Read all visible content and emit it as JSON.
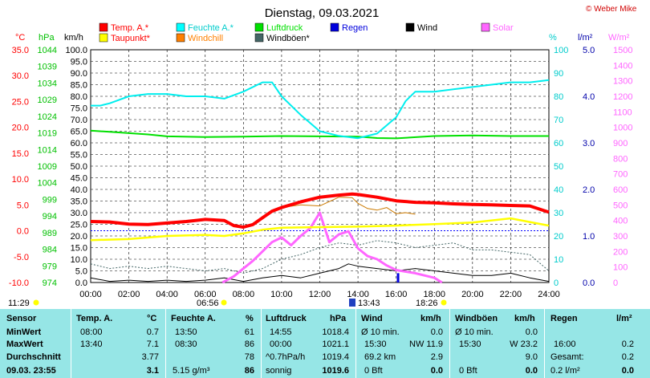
{
  "header": {
    "title": "Dienstag, 09.03.2021",
    "copyright": "© Weber Mike"
  },
  "legend": [
    {
      "label": "Temp. A.*",
      "color": "#ff0000"
    },
    {
      "label": "Feuchte A.*",
      "color": "#00ffff"
    },
    {
      "label": "Luftdruck",
      "color": "#00e000"
    },
    {
      "label": "Regen",
      "color": "#0000dd"
    },
    {
      "label": "Wind",
      "color": "#000000"
    },
    {
      "label": "Solar",
      "color": "#ff66ff"
    },
    {
      "label": "Taupunkt*",
      "color": "#ffff00"
    },
    {
      "label": "Windchill",
      "color": "#ff8000"
    },
    {
      "label": "Windböen*",
      "color": "#446666"
    }
  ],
  "chart_data": {
    "type": "line",
    "x_range": [
      "00:00",
      "24:00"
    ],
    "x_ticks": [
      "00:00",
      "02:00",
      "04:00",
      "06:00",
      "08:00",
      "10:00",
      "12:00",
      "14:00",
      "16:00",
      "18:00",
      "20:00",
      "22:00",
      "24:00"
    ],
    "grid": true,
    "axes": {
      "temp": {
        "unit": "°C",
        "range": [
          -10,
          35
        ],
        "ticks": [
          "35.0",
          "30.0",
          "25.0",
          "20.0",
          "15.0",
          "10.0",
          "5.0",
          "0.0",
          "-5.0",
          "-10.0"
        ],
        "color": "#ff0000"
      },
      "pressure": {
        "unit": "hPa",
        "range": [
          974,
          1046
        ],
        "ticks": [
          "1044",
          "1039",
          "1034",
          "1029",
          "1024",
          "1019",
          "1014",
          "1009",
          "1004",
          "999",
          "994",
          "989",
          "984",
          "979",
          "974"
        ],
        "color": "#00c000"
      },
      "wind": {
        "unit": "km/h",
        "range": [
          0,
          100
        ],
        "ticks": [
          "100.0",
          "95.0",
          "90.0",
          "85.0",
          "80.0",
          "75.0",
          "70.0",
          "65.0",
          "60.0",
          "55.0",
          "50.0",
          "45.0",
          "40.0",
          "35.0",
          "30.0",
          "25.0",
          "20.0",
          "15.0",
          "10.0",
          "5.0",
          "0.0"
        ],
        "color": "#000000"
      },
      "humidity": {
        "unit": "%",
        "range": [
          0,
          100
        ],
        "ticks": [
          "100",
          "90",
          "80",
          "70",
          "60",
          "50",
          "40",
          "30",
          "20",
          "10",
          "0"
        ],
        "color": "#00cccc"
      },
      "rain": {
        "unit": "l/m²",
        "range": [
          0,
          5
        ],
        "ticks": [
          "5.0",
          "4.0",
          "3.0",
          "2.0",
          "1.0",
          "0.0"
        ],
        "color": "#0000aa"
      },
      "solar": {
        "unit": "W/m²",
        "range": [
          0,
          1500
        ],
        "ticks": [
          "1500",
          "1400",
          "1300",
          "1200",
          "1100",
          "1000",
          "900",
          "800",
          "700",
          "600",
          "500",
          "400",
          "300",
          "200",
          "100",
          "0"
        ],
        "color": "#ff66ff"
      }
    },
    "series": [
      {
        "name": "Temp. A.*",
        "axis": "temp",
        "x": [
          0,
          1,
          2,
          3,
          4,
          5,
          6,
          7,
          7.5,
          8,
          8.5,
          9,
          9.5,
          10,
          11,
          12,
          13,
          13.7,
          14,
          15,
          16,
          17,
          18,
          19,
          20,
          21,
          22,
          23,
          24
        ],
        "y": [
          1.8,
          1.7,
          1.3,
          1.2,
          1.5,
          1.8,
          2.2,
          2.0,
          1.0,
          0.7,
          1.2,
          2.5,
          3.8,
          4.5,
          5.6,
          6.5,
          6.9,
          7.1,
          7.0,
          6.5,
          5.8,
          5.5,
          5.4,
          5.2,
          5.1,
          5.0,
          4.9,
          4.8,
          3.6
        ]
      },
      {
        "name": "Taupunkt*",
        "axis": "temp",
        "x": [
          0,
          2,
          4,
          6,
          7,
          8,
          9,
          10,
          12,
          14,
          16,
          18,
          20,
          22,
          24
        ],
        "y": [
          -1.8,
          -1.6,
          -1.0,
          -0.8,
          -1.0,
          -0.5,
          0.2,
          0.6,
          0.7,
          0.8,
          1.0,
          1.3,
          1.6,
          2.4,
          1.0
        ]
      },
      {
        "name": "Windchill",
        "axis": "temp",
        "x": [
          9.5,
          10,
          11,
          12,
          13,
          13.7,
          14,
          14.5,
          15,
          15.5,
          16,
          16.5,
          17
        ],
        "y": [
          3.8,
          4.5,
          5.0,
          4.8,
          6.5,
          6.4,
          5.3,
          4.3,
          4.0,
          4.5,
          3.3,
          3.5,
          3.2
        ]
      },
      {
        "name": "Feuchte A.*",
        "axis": "humidity",
        "x": [
          0,
          0.5,
          1,
          2,
          3,
          4,
          5,
          6,
          7,
          8,
          9,
          9.5,
          10,
          11,
          12,
          13,
          14,
          15,
          16,
          16.5,
          17,
          18,
          19,
          20,
          21,
          22,
          23,
          24
        ],
        "y": [
          76,
          76,
          77,
          80,
          81,
          81,
          80,
          80,
          79,
          82,
          86,
          86,
          80,
          72,
          65,
          63,
          62,
          64,
          71,
          78,
          82,
          82,
          83,
          84,
          85,
          86,
          86,
          87
        ]
      },
      {
        "name": "Luftdruck",
        "axis": "pressure",
        "x": [
          0,
          1,
          2,
          3,
          4,
          6,
          8,
          10,
          12,
          14,
          15,
          16,
          18,
          20,
          22,
          24
        ],
        "y": [
          1021.0,
          1020.6,
          1020.2,
          1019.8,
          1019.2,
          1019.0,
          1019.1,
          1019.3,
          1019.2,
          1019.1,
          1018.7,
          1018.6,
          1019.3,
          1019.5,
          1019.3,
          1019.3
        ]
      },
      {
        "name": "Wind",
        "axis": "wind",
        "x": [
          0,
          1,
          2,
          3,
          4,
          5,
          6,
          7,
          8,
          9,
          10,
          11,
          12,
          13,
          13.5,
          14,
          15,
          16,
          17,
          18,
          19,
          20,
          21,
          22,
          23,
          24
        ],
        "y": [
          2,
          0.5,
          1,
          0.5,
          1,
          0.5,
          1,
          2,
          0.5,
          2,
          3,
          2,
          4,
          6,
          8,
          7,
          6,
          5,
          6,
          5,
          4,
          3,
          3,
          4,
          2,
          0.5
        ]
      },
      {
        "name": "Windböen*",
        "axis": "wind",
        "x": [
          0,
          1,
          2,
          3,
          4,
          5,
          6,
          7,
          8,
          9,
          10,
          11,
          12,
          13,
          14,
          15,
          16,
          17,
          18,
          19,
          20,
          21,
          22,
          23,
          24
        ],
        "y": [
          8,
          6,
          7,
          6,
          7,
          6,
          5,
          6,
          4,
          6,
          10,
          12,
          15,
          17,
          16,
          18,
          17,
          15,
          16,
          17,
          14,
          14,
          13,
          12,
          5
        ]
      },
      {
        "name": "Solar",
        "axis": "solar",
        "x": [
          6.9,
          7.5,
          8,
          8.5,
          9,
          9.5,
          10,
          10.5,
          11,
          11.5,
          12,
          12.5,
          13,
          13.5,
          14,
          14.5,
          15,
          15.5,
          16,
          17,
          18,
          18.4
        ],
        "y": [
          0,
          40,
          90,
          140,
          200,
          260,
          290,
          240,
          300,
          350,
          450,
          260,
          310,
          330,
          220,
          170,
          150,
          110,
          80,
          60,
          30,
          0
        ]
      },
      {
        "name": "Regen",
        "axis": "rain",
        "x": [
          16.1
        ],
        "y": [
          0.2
        ]
      }
    ]
  },
  "sun": {
    "sunrise": "06:56",
    "sunset": "18:26",
    "max_time": "13:43",
    "day_length": "11:29"
  },
  "stats": {
    "row_labels": [
      "Sensor",
      "MinWert",
      "MaxWert",
      "Durchschnitt",
      "09.03. 23:55"
    ],
    "temp": {
      "header": "Temp. A.",
      "unit": "°C",
      "min_time": "08:00",
      "min": "0.7",
      "max_time": "13:40",
      "max": "7.1",
      "avg": "3.77",
      "current": "3.1"
    },
    "humidity": {
      "header": "Feuchte A.",
      "unit": "%",
      "min_time": "13:50",
      "min": "61",
      "max_time": "08:30",
      "max": "86",
      "avg": "78",
      "abs_humidity": "5.15 g/m³",
      "current": "86"
    },
    "pressure": {
      "header": "Luftdruck",
      "unit": "hPa",
      "min_time": "14:55",
      "min": "1018.4",
      "max_time": "00:00",
      "max": "1021.1",
      "trend": "^0.7hPa/h",
      "avg": "1019.4",
      "forecast": "sonnig",
      "current": "1019.6"
    },
    "wind": {
      "header": "Wind",
      "unit": "km/h",
      "min_label": "Ø 10 min.",
      "min": "0.0",
      "max_time": "15:30",
      "max": "NW 11.9",
      "distance": "69.2 km",
      "avg": "2.9",
      "bft": "0 Bft",
      "current": "0.0"
    },
    "gusts": {
      "header": "Windböen",
      "unit": "km/h",
      "min_label": "Ø 10 min.",
      "min": "0.0",
      "max_time": "15:30",
      "max": "W 23.2",
      "avg": "9.0",
      "bft": "0 Bft",
      "current": "0.0"
    },
    "rain": {
      "header": "Regen",
      "unit": "l/m²",
      "max_time": "16:00",
      "max": "0.2",
      "total_label": "Gesamt:",
      "total": "0.2",
      "current": "0.2 l/m²",
      "current_bold": "0.0"
    }
  }
}
